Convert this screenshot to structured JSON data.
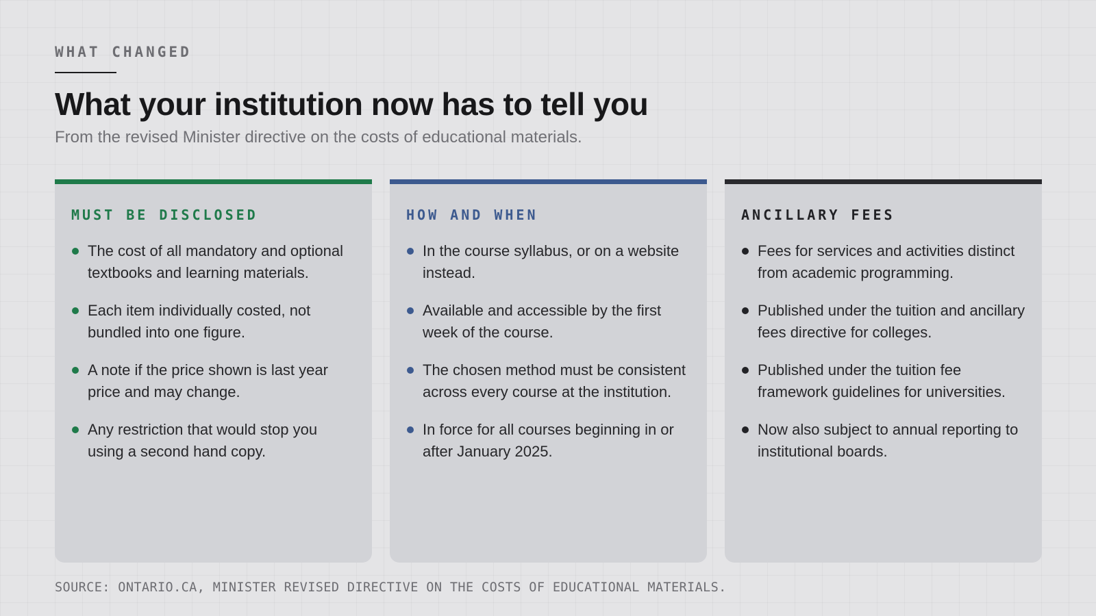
{
  "header": {
    "eyebrow": "WHAT CHANGED",
    "title": "What your institution now has to tell you",
    "subtitle": "From the revised Minister directive on the costs of educational materials."
  },
  "cards": [
    {
      "heading": "MUST BE DISCLOSED",
      "accent": "#1f7a4a",
      "items": [
        "The cost of all mandatory and optional textbooks and learning materials.",
        "Each item individually costed, not bundled into one figure.",
        "A note if the price shown is last year price and may change.",
        "Any restriction that would stop you using a second hand copy."
      ]
    },
    {
      "heading": "HOW AND WHEN",
      "accent": "#3d5a8f",
      "items": [
        "In the course syllabus, or on a website instead.",
        "Available and accessible by the first week of the course.",
        "The chosen method must be consistent across every course at the institution.",
        "In force for all courses beginning in or after January 2025."
      ]
    },
    {
      "heading": "ANCILLARY FEES",
      "accent": "#2a2a2e",
      "items": [
        "Fees for services and activities distinct from academic programming.",
        "Published under the tuition and ancillary fees directive for colleges.",
        "Published under the tuition fee framework guidelines for universities.",
        "Now also subject to annual reporting to institutional boards."
      ]
    }
  ],
  "footer": {
    "source": "SOURCE: ONTARIO.CA, MINISTER REVISED DIRECTIVE ON THE COSTS OF EDUCATIONAL MATERIALS."
  }
}
